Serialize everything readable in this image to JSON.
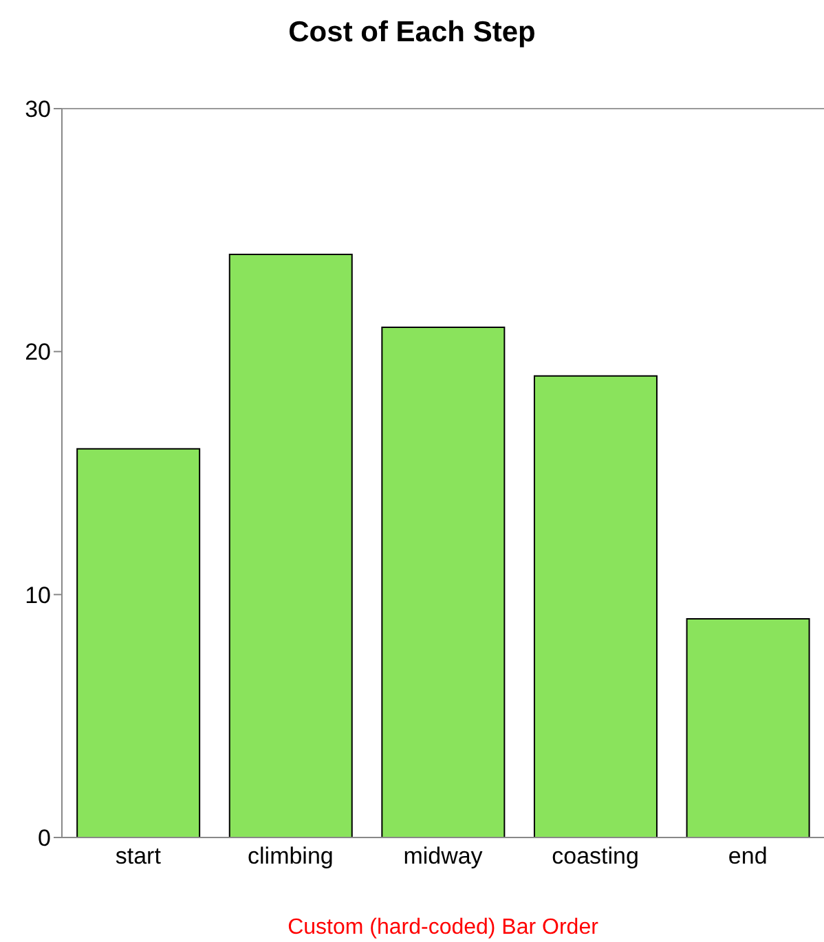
{
  "chart_data": {
    "type": "bar",
    "title": "Cost of Each Step",
    "categories": [
      "start",
      "climbing",
      "midway",
      "coasting",
      "end"
    ],
    "values": [
      16,
      24,
      21,
      19,
      9
    ],
    "color": "#8ae35c",
    "ylim": [
      0,
      30
    ],
    "yticks": [
      0,
      10,
      20,
      30
    ],
    "grid": false,
    "annotations": [
      "Custom (hard-coded) Bar Order"
    ]
  }
}
